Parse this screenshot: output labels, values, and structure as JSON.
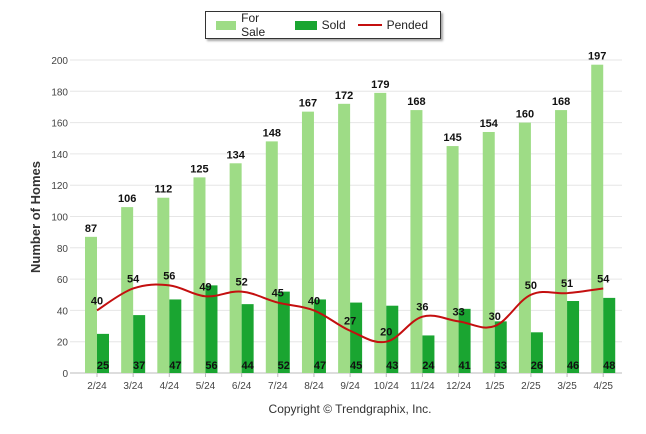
{
  "chart_data": {
    "type": "bar",
    "categories": [
      "2/24",
      "3/24",
      "4/24",
      "5/24",
      "6/24",
      "7/24",
      "8/24",
      "9/24",
      "10/24",
      "11/24",
      "12/24",
      "1/25",
      "2/25",
      "3/25",
      "4/25"
    ],
    "series": [
      {
        "name": "For Sale",
        "type": "bar",
        "color": "#9edc86",
        "values": [
          87,
          106,
          112,
          125,
          134,
          148,
          167,
          172,
          179,
          168,
          145,
          154,
          160,
          168,
          197
        ]
      },
      {
        "name": "Sold",
        "type": "bar",
        "color": "#1aa531",
        "values": [
          25,
          37,
          47,
          56,
          44,
          52,
          47,
          45,
          43,
          24,
          41,
          33,
          26,
          46,
          48
        ]
      },
      {
        "name": "Pended",
        "type": "line",
        "color": "#c40f0f",
        "values": [
          40,
          54,
          56,
          49,
          52,
          45,
          40,
          27,
          20,
          36,
          33,
          30,
          50,
          51,
          54
        ]
      }
    ],
    "ylabel": "Number of Homes",
    "yticks": [
      0,
      20,
      40,
      60,
      80,
      100,
      120,
      140,
      160,
      180,
      200
    ],
    "ylim": [
      0,
      200
    ],
    "grid": true,
    "legend_position": "top-center"
  },
  "footer": {
    "copyright": "Copyright © Trendgraphix, Inc."
  }
}
